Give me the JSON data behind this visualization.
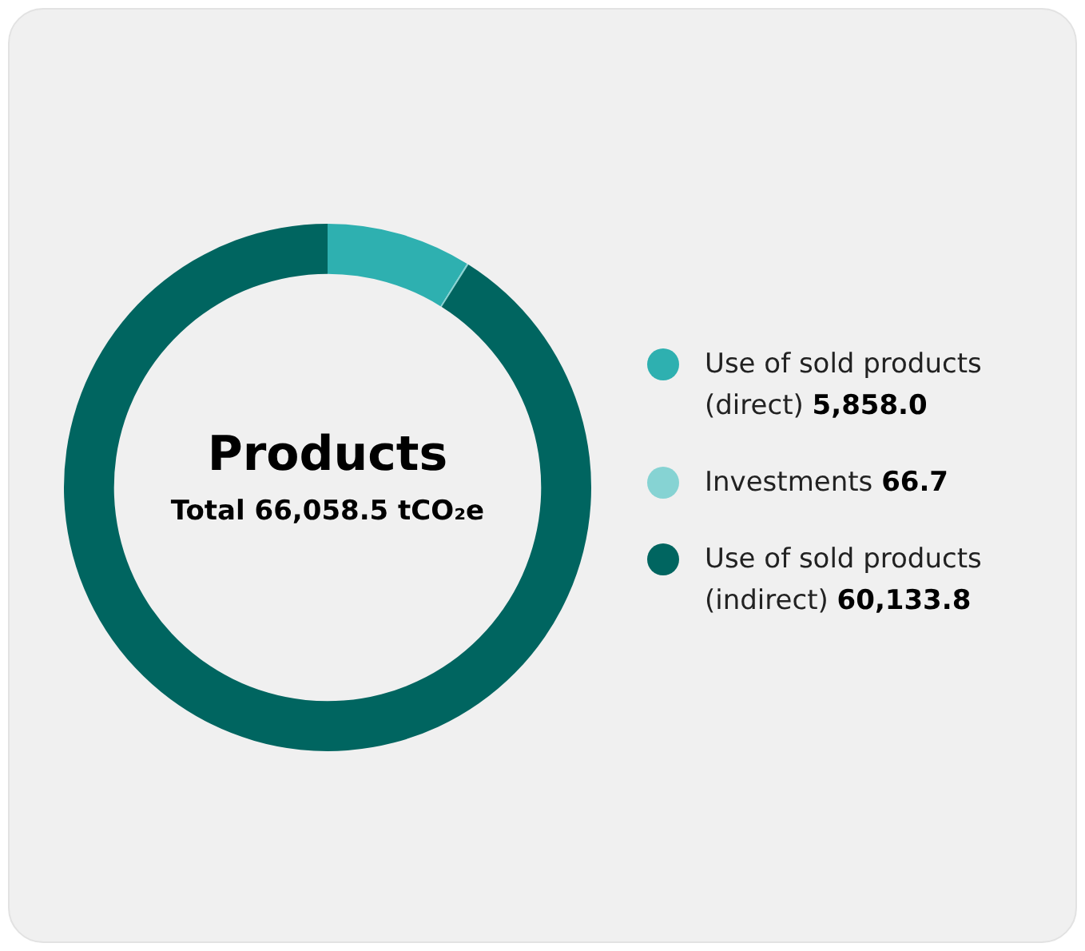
{
  "chart_data": {
    "type": "donut",
    "title": "Products",
    "subtitle": "Total 66,058.5 tCO₂e",
    "categories": [
      "Use of sold products (direct)",
      "Investments",
      "Use of sold products (indirect)"
    ],
    "values": [
      5858.0,
      66.7,
      60133.8
    ],
    "colors": [
      "#2eb0b0",
      "#86d3d3",
      "#006560"
    ],
    "value_labels": [
      "5,858.0",
      "66.7",
      "60,133.8"
    ],
    "legend": "right"
  }
}
